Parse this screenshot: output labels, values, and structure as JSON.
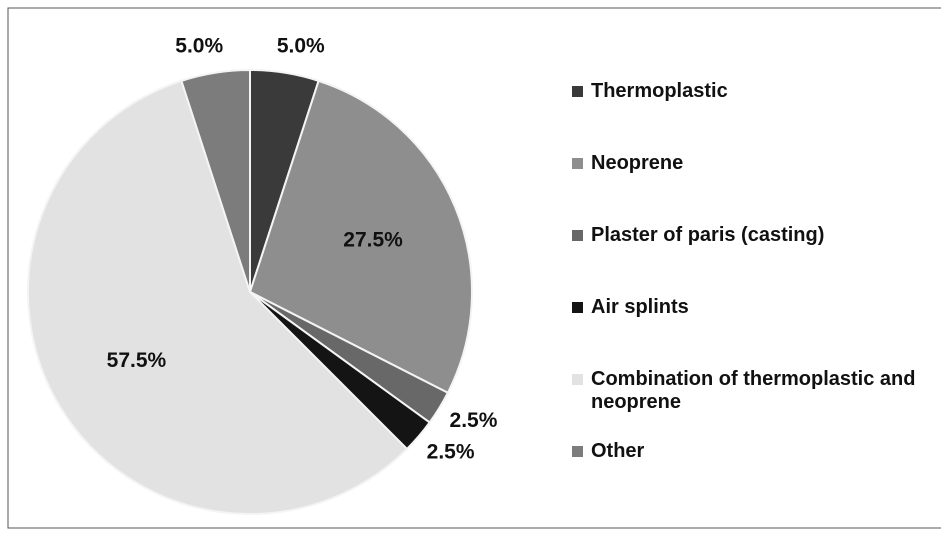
{
  "chart_data": {
    "type": "pie",
    "categories": [
      "Thermoplastic",
      "Neoprene",
      "Plaster of paris (casting)",
      "Air splints",
      "Combination of thermoplastic and neoprene",
      "Other"
    ],
    "values": [
      5.0,
      27.5,
      2.5,
      2.5,
      57.5,
      5.0
    ],
    "value_labels": [
      "5.0%",
      "27.5%",
      "2.5%",
      "2.5%",
      "57.5%",
      "5.0%"
    ],
    "colors": [
      "#3a3a3a",
      "#8e8e8e",
      "#686868",
      "#141414",
      "#e2e2e2",
      "#7c7c7c"
    ],
    "legend": "right"
  }
}
